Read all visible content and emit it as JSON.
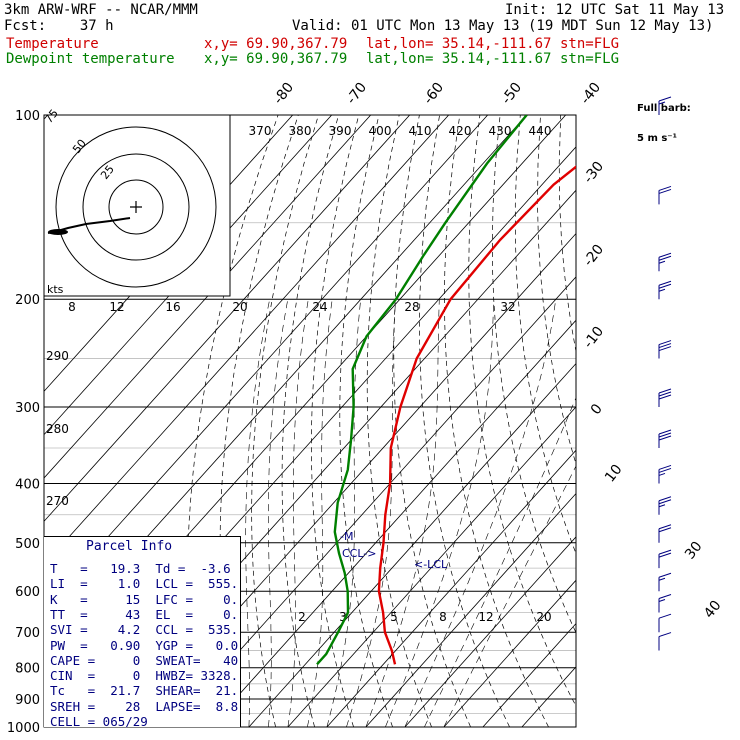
{
  "header": {
    "model": "3km ARW-WRF -- NCAR/MMM",
    "init": "Init: 12 UTC Sat 11 May 13",
    "fcst": "Fcst:    37 h",
    "valid": "Valid: 01 UTC Mon 13 May 13 (19 MDT Sun 12 May 13)",
    "temp_label": "Temperature",
    "dewp_label": "Dewpoint temperature",
    "xy": "x,y= 69.90,367.79",
    "latlon": "lat,lon= 35.14,-111.67",
    "stn": "stn=FLG"
  },
  "colors": {
    "temperature": "#e00000",
    "dewpoint": "#008000",
    "text_accent": "#000080"
  },
  "barb_key": {
    "line1": "Full barb:",
    "line2": "5 m s⁻¹"
  },
  "hodograph": {
    "ring_labels": [
      "75",
      "50",
      "25"
    ],
    "units": "kts"
  },
  "parcel": {
    "title": "Parcel  Info",
    "rows": [
      "T   =   19.3  Td =  -3.6",
      "LI  =    1.0  LCL =  555.",
      "K   =     15  LFC =    0.",
      "TT  =     43  EL  =    0.",
      "SVI =    4.2  CCL =  535.",
      "PW  =   0.90  YGP =   0.0",
      "CAPE =     0  SWEAT=   40",
      "CIN  =     0  HWBZ= 3328.",
      "Tc   =  21.7  SHEAR=  21.",
      "SREH =    28  LAPSE=  8.8",
      "CELL = 065/29"
    ]
  },
  "chart_data": {
    "type": "line",
    "title": "",
    "chart_kind": "skew-T log-P diagram",
    "y_axis": {
      "scale": "log",
      "units": "hPa",
      "range": [
        1000,
        100
      ],
      "tick_labels": [
        "100",
        "200",
        "300",
        "400",
        "500",
        "600",
        "700",
        "800",
        "900",
        "1000"
      ]
    },
    "isotherm_labels": [
      "-80",
      "-70",
      "-60",
      "-50",
      "-40",
      "-30",
      "-20",
      "-10",
      "0",
      "10",
      "30",
      "40"
    ],
    "theta_labels_top": [
      "370",
      "380",
      "390",
      "400",
      "410",
      "420",
      "430",
      "440"
    ],
    "theta_labels_left": [
      "290",
      "280",
      "270"
    ],
    "mixing_ratio_labels_mid": [
      "8",
      "12",
      "16",
      "20",
      "24",
      "28",
      "32"
    ],
    "mixing_ratio_labels_low": [
      "2",
      "3",
      "5",
      "8",
      "12",
      "20"
    ],
    "level_markers": [
      "M",
      "CCL",
      "LCL"
    ],
    "series": [
      {
        "name": "Temperature",
        "units": "C",
        "points": [
          [
            100,
            -51
          ],
          [
            110,
            -53
          ],
          [
            130,
            -57
          ],
          [
            160,
            -58
          ],
          [
            200,
            -57
          ],
          [
            250,
            -52
          ],
          [
            300,
            -45
          ],
          [
            350,
            -38
          ],
          [
            400,
            -30
          ],
          [
            450,
            -24
          ],
          [
            500,
            -18
          ],
          [
            550,
            -13
          ],
          [
            600,
            -8
          ],
          [
            650,
            -2
          ],
          [
            700,
            3
          ],
          [
            750,
            9
          ],
          [
            790,
            13
          ]
        ]
      },
      {
        "name": "Dewpoint temperature",
        "units": "C",
        "points": [
          [
            100,
            -80
          ],
          [
            120,
            -79
          ],
          [
            150,
            -76
          ],
          [
            170,
            -74
          ],
          [
            200,
            -71
          ],
          [
            230,
            -70
          ],
          [
            260,
            -66
          ],
          [
            300,
            -57
          ],
          [
            340,
            -50
          ],
          [
            380,
            -44
          ],
          [
            430,
            -39
          ],
          [
            480,
            -33
          ],
          [
            520,
            -27
          ],
          [
            560,
            -21
          ],
          [
            600,
            -16
          ],
          [
            650,
            -11
          ],
          [
            700,
            -9
          ],
          [
            760,
            -7
          ],
          [
            790,
            -7
          ]
        ]
      }
    ],
    "wind_barbs": [
      [
        100,
        15
      ],
      [
        140,
        20
      ],
      [
        180,
        25
      ],
      [
        200,
        25
      ],
      [
        250,
        30
      ],
      [
        300,
        30
      ],
      [
        350,
        30
      ],
      [
        400,
        25
      ],
      [
        450,
        25
      ],
      [
        500,
        22
      ],
      [
        550,
        20
      ],
      [
        600,
        15
      ],
      [
        650,
        15
      ],
      [
        700,
        12
      ],
      [
        750,
        10
      ]
    ]
  }
}
